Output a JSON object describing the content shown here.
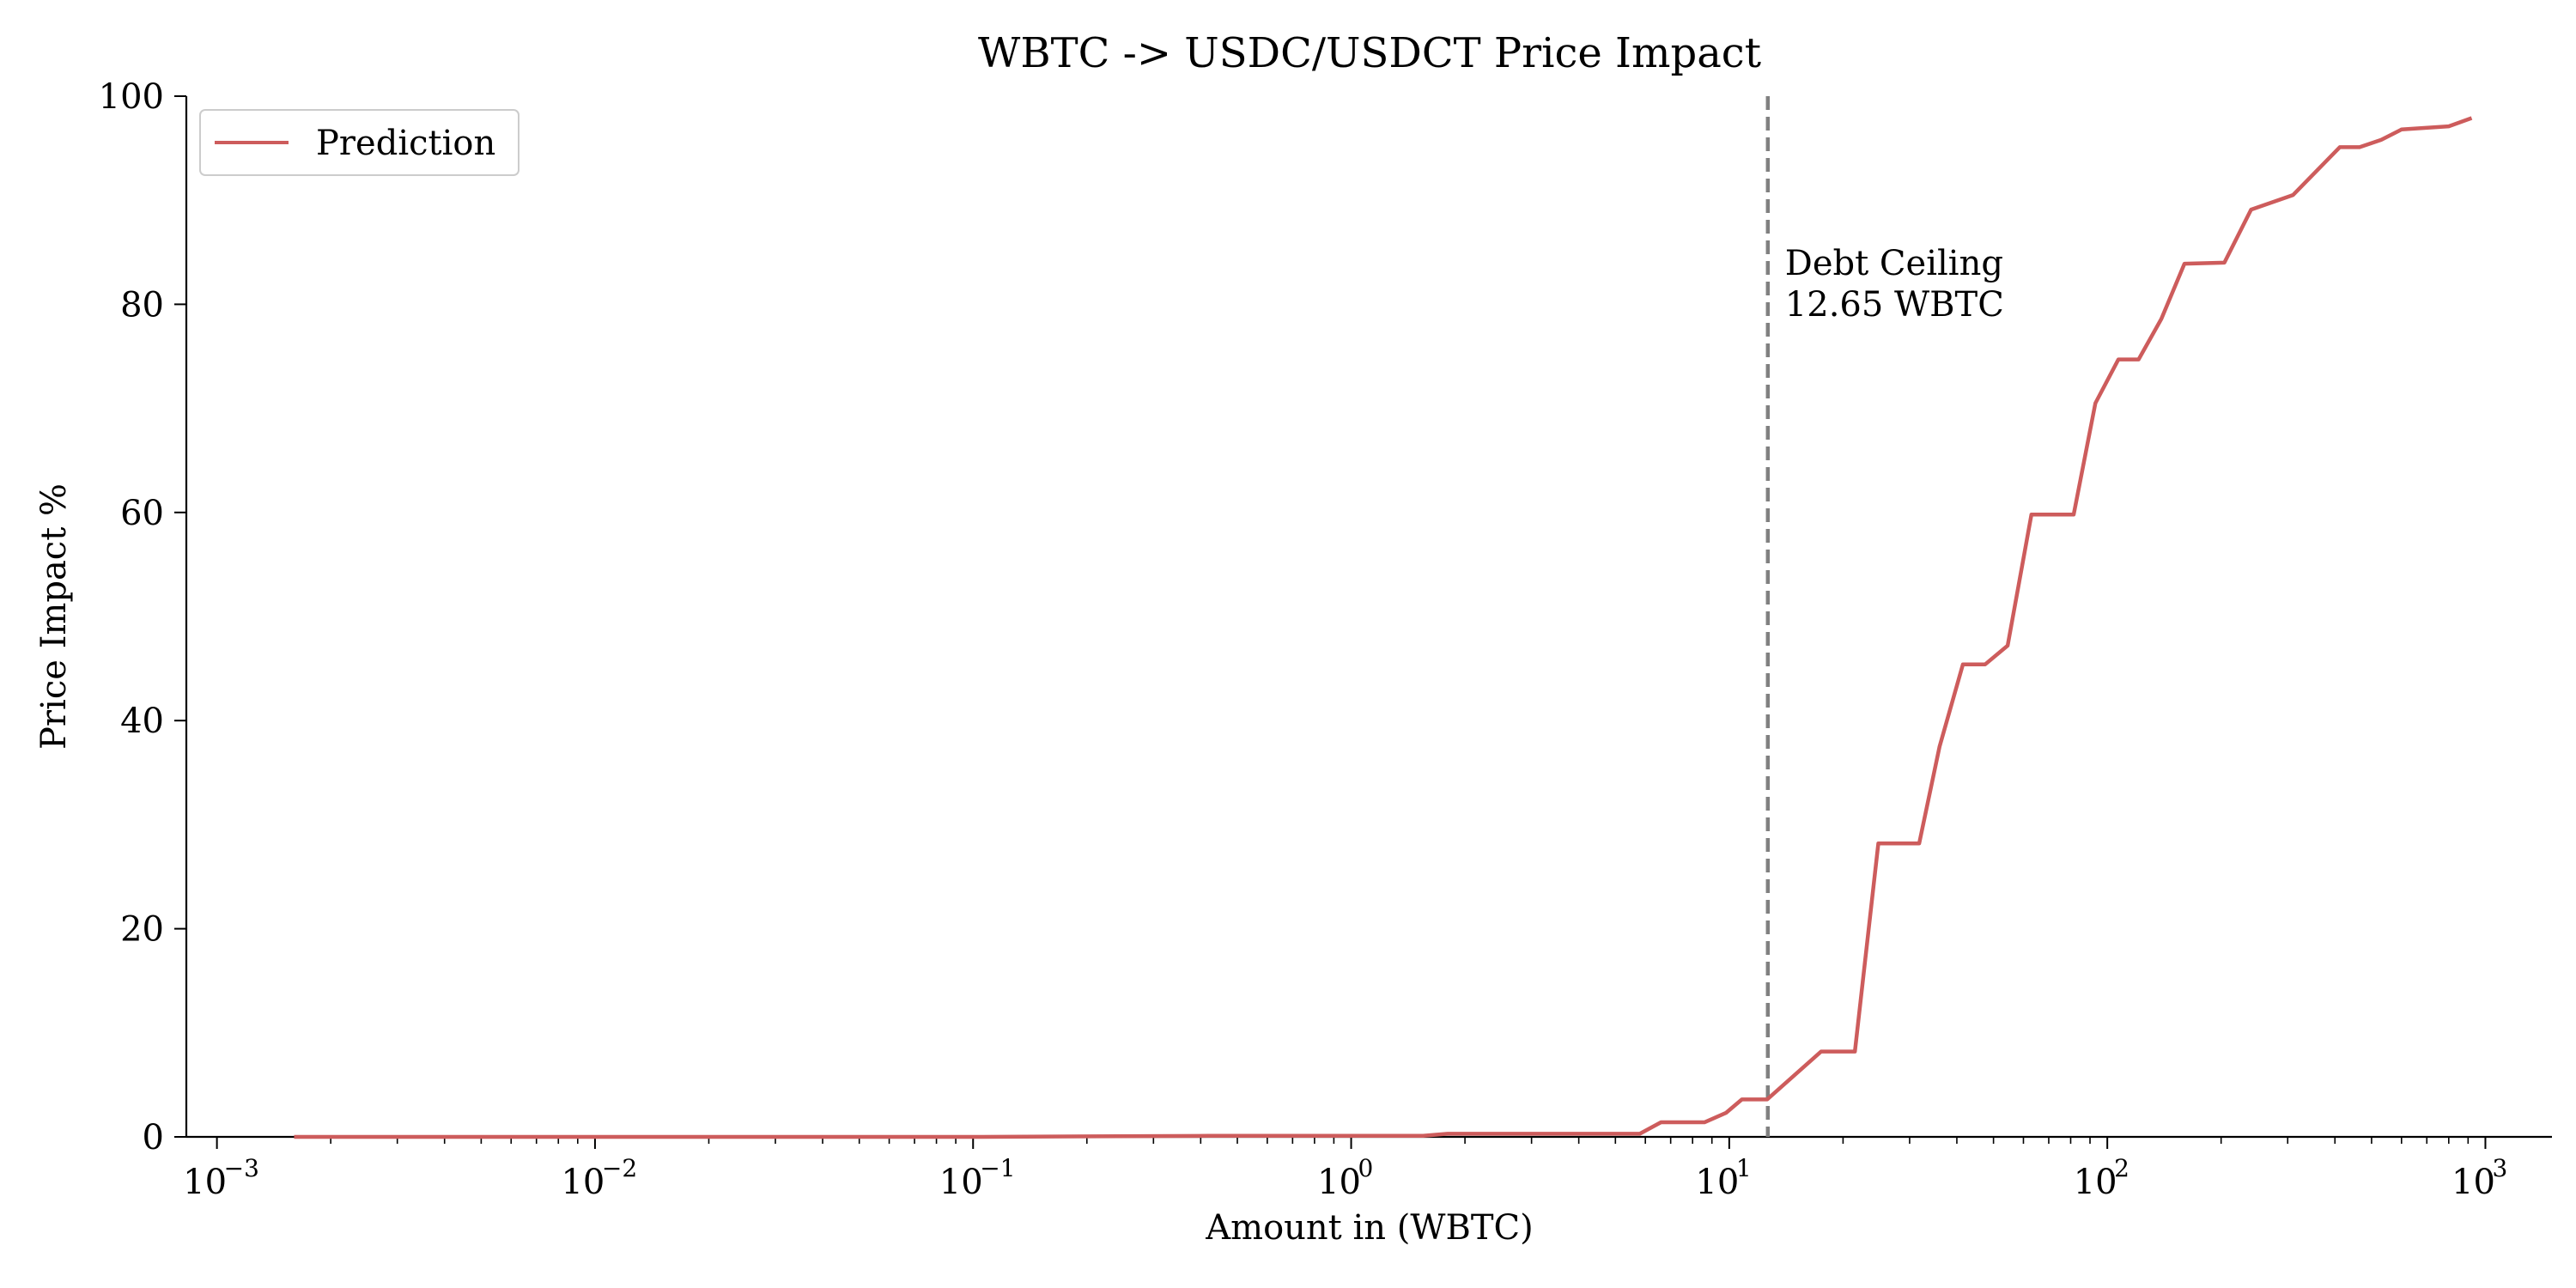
{
  "chart_data": {
    "type": "line",
    "title": "WBTC -> USDC/USDCT Price Impact",
    "xlabel": "Amount in (WBTC)",
    "ylabel": "Price Impact %",
    "xscale": "log",
    "xlim": [
      0.00083,
      1500
    ],
    "ylim": [
      0,
      100
    ],
    "grid": false,
    "legend": {
      "placement": "top-left",
      "entries": [
        "Prediction"
      ]
    },
    "x_ticks": [
      {
        "value": 0.001,
        "base": "10",
        "exp": "−3"
      },
      {
        "value": 0.01,
        "base": "10",
        "exp": "−2"
      },
      {
        "value": 0.1,
        "base": "10",
        "exp": "−1"
      },
      {
        "value": 1,
        "base": "10",
        "exp": "0"
      },
      {
        "value": 10,
        "base": "10",
        "exp": "1"
      },
      {
        "value": 100,
        "base": "10",
        "exp": "2"
      },
      {
        "value": 1000,
        "base": "10",
        "exp": "3"
      }
    ],
    "y_ticks": [
      0,
      20,
      40,
      60,
      80,
      100
    ],
    "series": [
      {
        "name": "Prediction",
        "color": "#cd5c5c",
        "points": [
          [
            0.0016,
            0.0
          ],
          [
            0.01,
            0.0
          ],
          [
            0.1,
            0.0
          ],
          [
            0.42,
            0.1
          ],
          [
            1.55,
            0.1
          ],
          [
            1.8,
            0.3
          ],
          [
            5.8,
            0.3
          ],
          [
            6.6,
            1.4
          ],
          [
            8.6,
            1.4
          ],
          [
            9.8,
            2.3
          ],
          [
            10.8,
            3.6
          ],
          [
            12.6,
            3.6
          ],
          [
            17.5,
            8.2
          ],
          [
            21.5,
            8.2
          ],
          [
            24.8,
            28.2
          ],
          [
            31.8,
            28.2
          ],
          [
            36.0,
            37.5
          ],
          [
            41.5,
            45.4
          ],
          [
            47.5,
            45.4
          ],
          [
            54.5,
            47.2
          ],
          [
            63.0,
            59.8
          ],
          [
            81.5,
            59.8
          ],
          [
            93.0,
            70.5
          ],
          [
            107.0,
            74.7
          ],
          [
            121.0,
            74.7
          ],
          [
            139.0,
            78.6
          ],
          [
            160.0,
            83.9
          ],
          [
            204.0,
            84.0
          ],
          [
            240.0,
            89.1
          ],
          [
            310.0,
            90.5
          ],
          [
            412.0,
            95.1
          ],
          [
            465.0,
            95.1
          ],
          [
            530.0,
            95.8
          ],
          [
            600.0,
            96.8
          ],
          [
            800.0,
            97.1
          ],
          [
            920.0,
            97.9
          ]
        ]
      }
    ],
    "annotations": [
      {
        "type": "vline",
        "x": 12.65,
        "color": "#808080",
        "style": "dashed",
        "label_lines": [
          "Debt Ceiling",
          "12.65 WBTC"
        ]
      }
    ]
  }
}
